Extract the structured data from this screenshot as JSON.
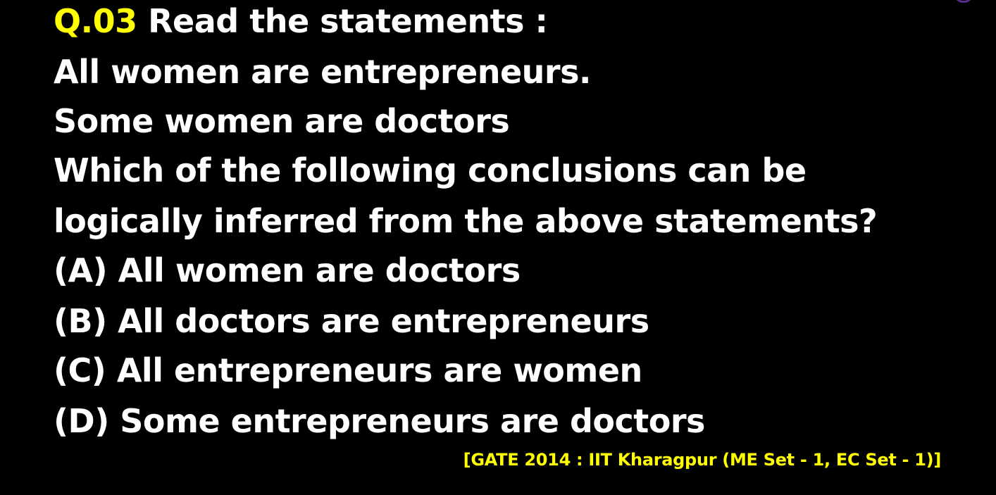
{
  "question": {
    "number": "Q.03",
    "prompt": "Read the statements :",
    "statements": [
      "All women are entrepreneurs.",
      "Some women are doctors"
    ],
    "ask": [
      "Which of the following conclusions can be",
      "logically inferred from the above statements?"
    ],
    "options": [
      "(A) All women are doctors",
      "(B) All doctors are entrepreneurs",
      "(C) All entrepreneurs are women",
      "(D) Some entrepreneurs are doctors"
    ]
  },
  "source": "[GATE 2014 : IIT Kharagpur (ME Set - 1, EC Set - 1)]",
  "colors": {
    "background": "#000000",
    "text": "#ffffff",
    "accent": "#ffff00"
  }
}
